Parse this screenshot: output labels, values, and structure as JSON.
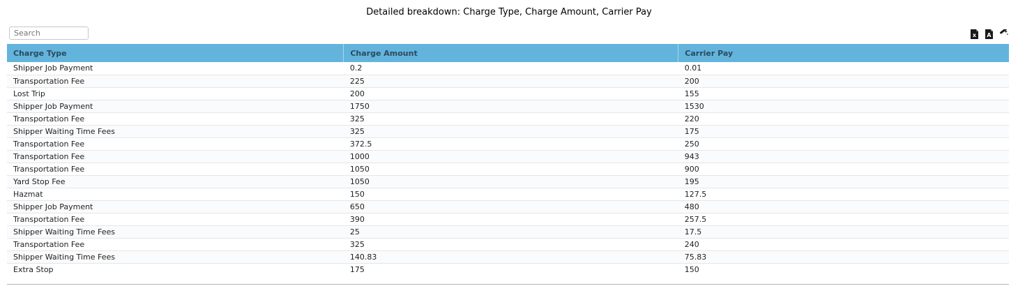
{
  "page": {
    "title": "Detailed breakdown: Charge Type, Charge Amount, Carrier Pay"
  },
  "toolbar": {
    "search_placeholder": "Search",
    "search_value": "",
    "icons": [
      {
        "name": "excel-export-icon"
      },
      {
        "name": "pdf-export-icon"
      },
      {
        "name": "magic-wand-icon"
      }
    ]
  },
  "table": {
    "columns": [
      "Charge Type",
      "Charge Amount",
      "Carrier Pay"
    ],
    "rows": [
      [
        "Shipper Job Payment",
        "0.2",
        "0.01"
      ],
      [
        "Transportation Fee",
        "225",
        "200"
      ],
      [
        "Lost Trip",
        "200",
        "155"
      ],
      [
        "Shipper Job Payment",
        "1750",
        "1530"
      ],
      [
        "Transportation Fee",
        "325",
        "220"
      ],
      [
        "Shipper Waiting Time Fees",
        "325",
        "175"
      ],
      [
        "Transportation Fee",
        "372.5",
        "250"
      ],
      [
        "Transportation Fee",
        "1000",
        "943"
      ],
      [
        "Transportation Fee",
        "1050",
        "900"
      ],
      [
        "Yard Stop Fee",
        "1050",
        "195"
      ],
      [
        "Hazmat",
        "150",
        "127.5"
      ],
      [
        "Shipper Job Payment",
        "650",
        "480"
      ],
      [
        "Transportation Fee",
        "390",
        "257.5"
      ],
      [
        "Shipper Waiting Time Fees",
        "25",
        "17.5"
      ],
      [
        "Transportation Fee",
        "325",
        "240"
      ],
      [
        "Shipper Waiting Time Fees",
        "140.83",
        "75.83"
      ],
      [
        "Extra Stop",
        "175",
        "150"
      ]
    ]
  },
  "colors": {
    "header_bg": "#62b4dc",
    "header_text": "#2d4a5d",
    "row_alt_bg": "#fafbfd",
    "row_separator": "#e6e6e6"
  }
}
